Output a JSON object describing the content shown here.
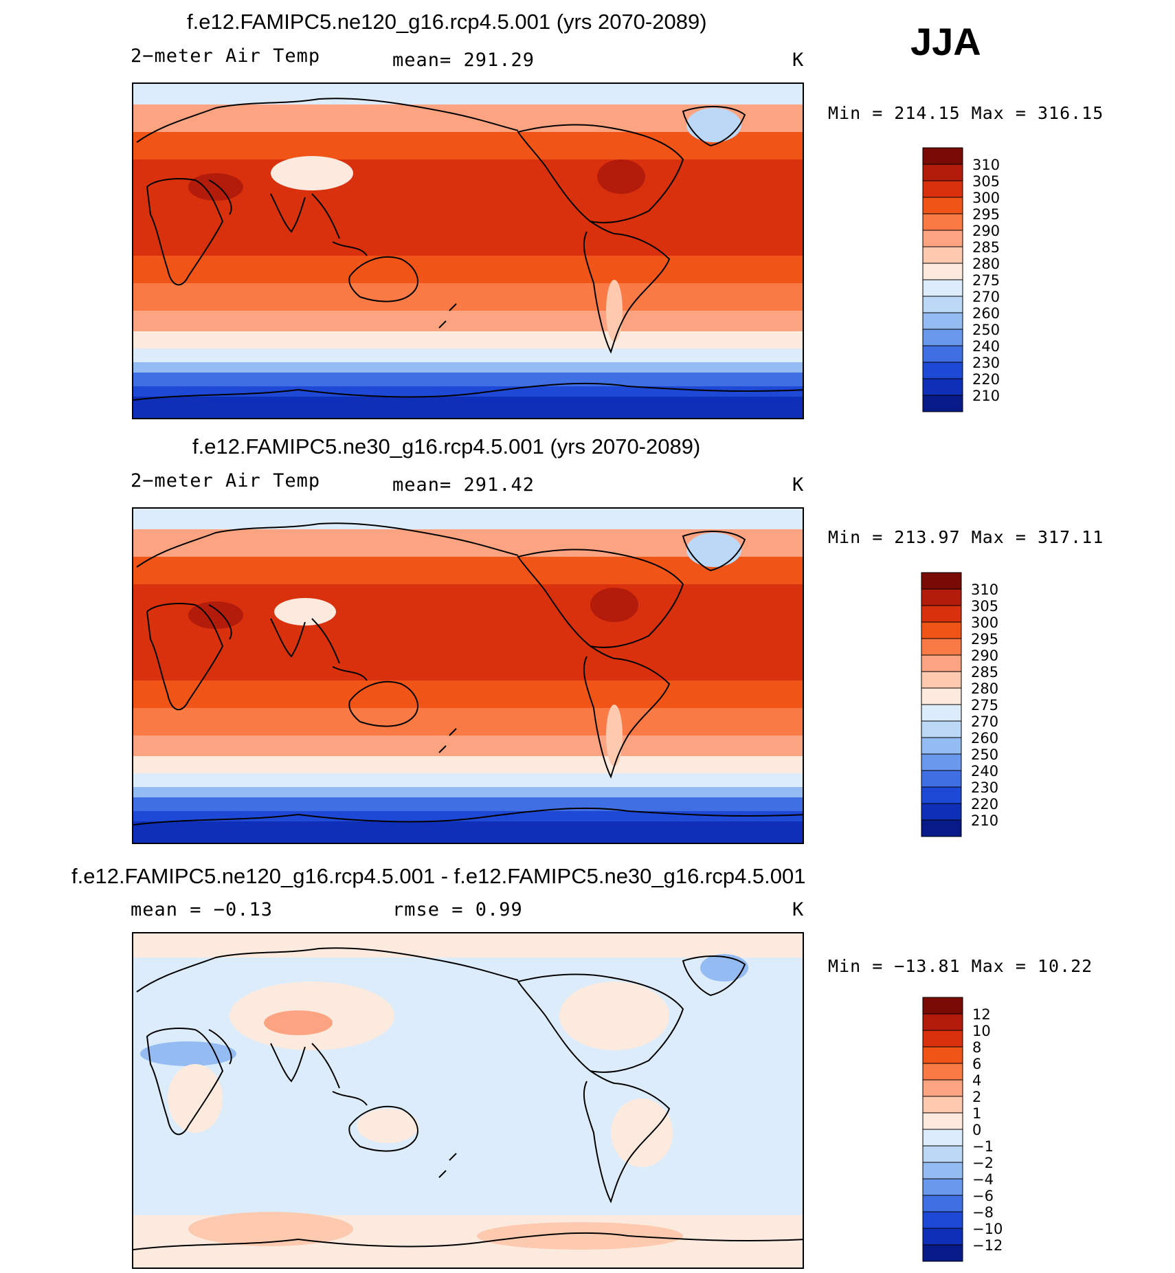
{
  "season": "JJA",
  "panels": [
    {
      "title": "f.e12.FAMIPC5.ne120_g16.rcp4.5.001 (yrs 2070-2089)",
      "left_label": "2−meter Air Temp",
      "center_label": "mean=  291.29",
      "units": "K",
      "minmax": "Min  =  214.15  Max  =  316.15",
      "colorbar": {
        "labels": [
          "310",
          "305",
          "300",
          "295",
          "290",
          "285",
          "280",
          "275",
          "270",
          "260",
          "250",
          "240",
          "230",
          "220",
          "210"
        ],
        "colors": [
          "#7a0a05",
          "#b31b0a",
          "#d9300e",
          "#f05517",
          "#fa7a45",
          "#fca382",
          "#fdcab0",
          "#fdeade",
          "#dcecfa",
          "#bcd8f7",
          "#94bcf2",
          "#6a98ec",
          "#3f6fe3",
          "#1e48d6",
          "#0f2fb8",
          "#071a88"
        ]
      }
    },
    {
      "title": "f.e12.FAMIPC5.ne30_g16.rcp4.5.001 (yrs 2070-2089)",
      "left_label": "2−meter Air Temp",
      "center_label": "mean=  291.42",
      "units": "K",
      "minmax": "Min  =  213.97  Max  =  317.11",
      "colorbar": {
        "labels": [
          "310",
          "305",
          "300",
          "295",
          "290",
          "285",
          "280",
          "275",
          "270",
          "260",
          "250",
          "240",
          "230",
          "220",
          "210"
        ],
        "colors": [
          "#7a0a05",
          "#b31b0a",
          "#d9300e",
          "#f05517",
          "#fa7a45",
          "#fca382",
          "#fdcab0",
          "#fdeade",
          "#dcecfa",
          "#bcd8f7",
          "#94bcf2",
          "#6a98ec",
          "#3f6fe3",
          "#1e48d6",
          "#0f2fb8",
          "#071a88"
        ]
      }
    },
    {
      "title": "f.e12.FAMIPC5.ne120_g16.rcp4.5.001 - f.e12.FAMIPC5.ne30_g16.rcp4.5.001",
      "left_label": "mean  =    −0.13",
      "center_label": "rmse  =     0.99",
      "units": "K",
      "minmax": "Min  =  −13.81  Max  =    10.22",
      "colorbar": {
        "labels": [
          "12",
          "10",
          "8",
          "6",
          "4",
          "2",
          "1",
          "0",
          "−1",
          "−2",
          "−4",
          "−6",
          "−8",
          "−10",
          "−12"
        ],
        "colors": [
          "#7a0a05",
          "#b31b0a",
          "#d9300e",
          "#f05517",
          "#fa7a45",
          "#fca382",
          "#fdcab0",
          "#fdeade",
          "#dcecfa",
          "#bcd8f7",
          "#94bcf2",
          "#6a98ec",
          "#3f6fe3",
          "#1e48d6",
          "#0f2fb8",
          "#071a88"
        ]
      }
    }
  ]
}
